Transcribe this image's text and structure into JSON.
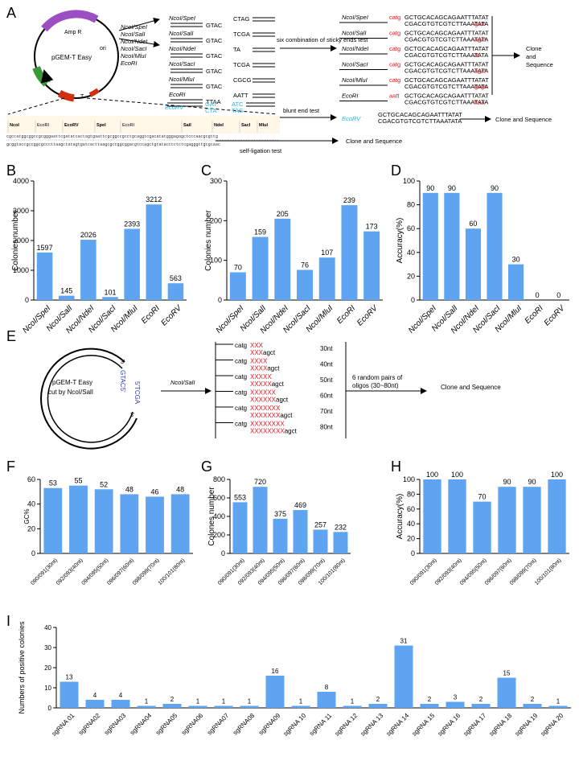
{
  "figure": {
    "panel_labels": [
      "A",
      "B",
      "C",
      "D",
      "E",
      "F",
      "G",
      "H",
      "I"
    ]
  },
  "panel_a": {
    "plasmid_name": "pGEM-T Easy",
    "amp_label": "Amp R",
    "ori_label": "ori",
    "t_label": "T",
    "enzymes": [
      "NcoI/SpeI",
      "NcoI/SalI",
      "NcoI/NdeI",
      "NcoI/SacI",
      "NcoI/MluI",
      "EcoRI"
    ],
    "overhangs_left": [
      "GTAC",
      "GTAC",
      "GTAC",
      "GTAC",
      "GTAC",
      "TTAA"
    ],
    "overhangs_right": [
      "CTAG",
      "TCGA",
      "TA",
      "TCGA",
      "CGCG",
      "AATT"
    ],
    "ecorv_label": "EcoRV",
    "ecorv_top": "GAT",
    "ecorv_bottom": "CTA",
    "ecorv_top2": "ATC",
    "ecorv_bottom2": "TAG",
    "sticky_test_label": "six combination of sticky ends test",
    "blunt_test_label": "blunt end test",
    "self_ligation_label": "self-ligation test",
    "clone_seq": "Clone and Sequence",
    "clone_word1": "Clone",
    "clone_word2": "and",
    "clone_word3": "Sequence",
    "insert_top": "GCTGCACAGCAGAATTTATAT",
    "insert_bottom": "CGACGTGTCGTCTTAAATATA",
    "left_tags": [
      "catg",
      "catg",
      "catg",
      "catg",
      "catg",
      "aatt"
    ],
    "right_tags": [
      "gatc",
      "agct",
      "at",
      "agct",
      "gcgc",
      "ttaa"
    ],
    "ecorv_insert_top": "GCTGCACAGCAGAATTTATAT",
    "ecorv_insert_bottom": "CGACGTGTCGTCTTAAATATA",
    "site_labels": [
      "NcoI",
      "EcoRI",
      "EcoRV",
      "SpeI",
      "EcoRI",
      "SalI",
      "NdeI",
      "SacI",
      "MluI"
    ],
    "mcs_top": "cgccatggcggccgcgggaattcgatatcactagtgaattcgcggccgcctgcaggtcgacatatgggagagctcccaacgcgttg",
    "mcs_bottom": "gcggtaccgccggcgcccttaagctatagtgatcacttaagcgccggcggacgtccagctgtatacccctctcgagggttgcgcaac"
  },
  "panel_e": {
    "plasmid_name": "pGEM-T Easy",
    "cut_label": "cut by NcoI/SalI",
    "end_top": "GTAC5'",
    "end_bottom": "5'TCGA",
    "prime3_top": "3'",
    "prime3_bottom": "3'",
    "digest_label": "NcoI/SalI",
    "oligo_rows": [
      {
        "top_prefix": "catg",
        "top_x": "XXX",
        "bottom_x": "XXX",
        "bottom_suffix": "agct",
        "len": "30nt"
      },
      {
        "top_prefix": "catg",
        "top_x": "XXXX",
        "bottom_x": "XXXX",
        "bottom_suffix": "agct",
        "len": "40nt"
      },
      {
        "top_prefix": "catg",
        "top_x": "XXXXX",
        "bottom_x": "XXXXX",
        "bottom_suffix": "agct",
        "len": "50nt"
      },
      {
        "top_prefix": "catg",
        "top_x": "XXXXXX",
        "bottom_x": "XXXXXX",
        "bottom_suffix": "agct",
        "len": "60nt"
      },
      {
        "top_prefix": "catg",
        "top_x": "XXXXXXX",
        "bottom_x": "XXXXXXX",
        "bottom_suffix": "agct",
        "len": "70nt"
      },
      {
        "top_prefix": "catg",
        "top_x": "XXXXXXXX",
        "bottom_x": "XXXXXXXX",
        "bottom_suffix": "agct",
        "len": "80nt"
      }
    ],
    "pairs_label_1": "6 random pairs of",
    "pairs_label_2": "oligos (30~80nt)",
    "clone_seq": "Clone and Sequence"
  },
  "chart_data": [
    {
      "id": "B",
      "type": "bar",
      "categories": [
        "NcoI/SpeI",
        "NcoI/SalI",
        "NcoI/NdeI",
        "NcoI/SacI",
        "NcoI/MluI",
        "EcoRI",
        "EcoRV"
      ],
      "values": [
        1597,
        145,
        2026,
        101,
        2393,
        3212,
        563
      ],
      "ylabel": "Colonies number",
      "ylim": [
        0,
        4000
      ],
      "ticks": [
        0,
        1000,
        2000,
        3000,
        4000
      ]
    },
    {
      "id": "C",
      "type": "bar",
      "categories": [
        "NcoI/SpeI",
        "NcoI/SalI",
        "NcoI/NdeI",
        "NcoI/SacI",
        "NcoI/MluI",
        "EcoRI",
        "EcoRV"
      ],
      "values": [
        70,
        159,
        205,
        76,
        107,
        239,
        173
      ],
      "ylabel": "Colonies number",
      "ylim": [
        0,
        300
      ],
      "ticks": [
        0,
        100,
        200,
        300
      ]
    },
    {
      "id": "D",
      "type": "bar",
      "categories": [
        "NcoI/SpeI",
        "NcoI/SalI",
        "NcoI/NdeI",
        "NcoI/SacI",
        "NcoI/MluI",
        "EcoRI",
        "EcoRV"
      ],
      "values": [
        90,
        90,
        60,
        90,
        30,
        0,
        0
      ],
      "ylabel": "Accuracy(%)",
      "ylim": [
        0,
        100
      ],
      "ticks": [
        0,
        20,
        40,
        60,
        80,
        100
      ]
    },
    {
      "id": "F",
      "type": "bar",
      "categories": [
        "090/091(30nt)",
        "092/093(40nt)",
        "094/095(50nt)",
        "096/097(60nt)",
        "098/099(70nt)",
        "100/101(80nt)"
      ],
      "values": [
        53,
        55,
        52,
        48,
        46,
        48
      ],
      "ylabel": "GC%",
      "ylim": [
        0,
        60
      ],
      "ticks": [
        0,
        20,
        40,
        60
      ]
    },
    {
      "id": "G",
      "type": "bar",
      "categories": [
        "090/091(30nt)",
        "092/093(40nt)",
        "094/095(50nt)",
        "096/097(60nt)",
        "098/099(70nt)",
        "100/101(80nt)"
      ],
      "values": [
        553,
        720,
        375,
        469,
        257,
        232
      ],
      "ylabel": "Colones number",
      "ylim": [
        0,
        800
      ],
      "ticks": [
        0,
        200,
        400,
        600,
        800
      ]
    },
    {
      "id": "H",
      "type": "bar",
      "categories": [
        "090/091(30nt)",
        "092/093(40nt)",
        "094/095(50nt)",
        "096/097(60nt)",
        "098/099(70nt)",
        "100/101(80nt)"
      ],
      "values": [
        100,
        100,
        70,
        90,
        90,
        100
      ],
      "ylabel": "Accuracy(%)",
      "ylim": [
        0,
        100
      ],
      "ticks": [
        0,
        20,
        40,
        60,
        80,
        100
      ]
    },
    {
      "id": "I",
      "type": "bar",
      "categories": [
        "sgRNA 01",
        "sgRNA02",
        "sgRNA03",
        "sgRNA04",
        "sgRNA05",
        "sgRNA06",
        "sgRNA07",
        "sgRNA08",
        "sgRNA09",
        "sgRNA 10",
        "sgRNA 11",
        "sgRNA 12",
        "sgRNA 13",
        "sgRNA 14",
        "sgRNA 15",
        "sgRNA 16",
        "sgRNA 17",
        "sgRNA 18",
        "sgRNA 19",
        "sgRNA 20"
      ],
      "values": [
        13,
        4,
        4,
        1,
        2,
        1,
        1,
        1,
        16,
        1,
        8,
        1,
        2,
        31,
        2,
        3,
        2,
        15,
        2,
        1
      ],
      "ylabel": "Numbers of positive colonies",
      "ylim": [
        0,
        40
      ],
      "ticks": [
        0,
        10,
        20,
        30,
        40
      ]
    }
  ],
  "colors": {
    "bar": "#5ea4f0",
    "red": "#e8141c",
    "cyan": "#2ab4e8",
    "amp": "#9b4fc2",
    "green": "#3a9a3a",
    "blue": "#3040c0"
  }
}
